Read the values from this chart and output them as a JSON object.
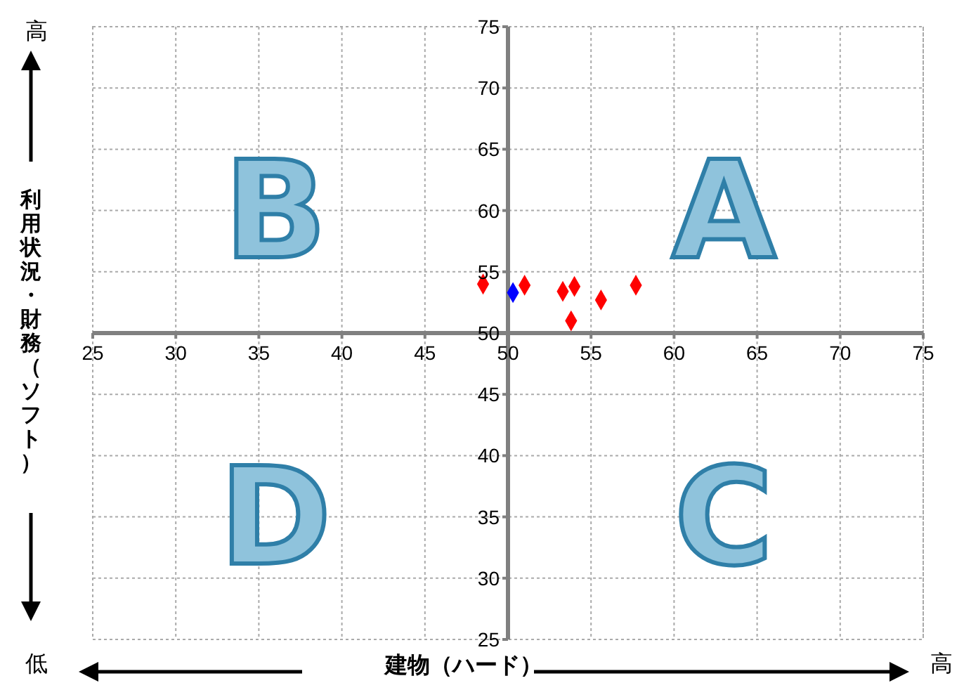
{
  "chart_data": {
    "type": "scatter",
    "xlabel": "建物（ハード）",
    "ylabel": "利用状況・財務（ソフト）",
    "annotations": [
      "A",
      "B",
      "C",
      "D",
      "高",
      "低",
      "高"
    ],
    "series": [
      {
        "color": "#ff0000",
        "x": [
          48.5,
          51.0,
          53.3,
          54.0,
          53.8,
          55.6,
          57.7
        ],
        "values": [
          54.0,
          53.9,
          53.4,
          53.8,
          51.0,
          52.7,
          53.9
        ]
      },
      {
        "color": "#0000ff",
        "x": [
          50.3
        ],
        "values": [
          53.3
        ]
      }
    ],
    "xlim": [
      25,
      75
    ],
    "xticks": [
      25,
      30,
      35,
      40,
      45,
      50,
      55,
      60,
      65,
      70,
      75
    ],
    "ylim": [
      25,
      75
    ],
    "yticks": [
      25,
      30,
      35,
      40,
      45,
      50,
      55,
      60,
      65,
      70,
      75
    ],
    "grid": true,
    "marker": "diamond"
  }
}
